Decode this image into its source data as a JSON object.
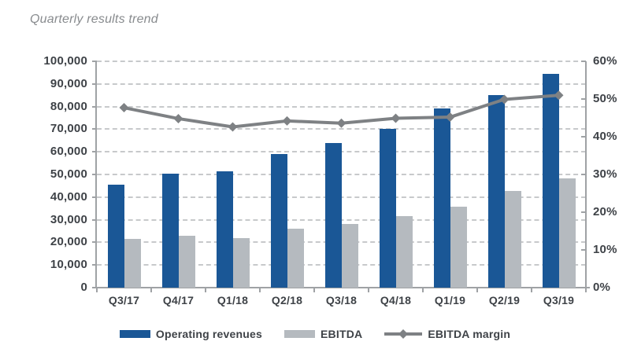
{
  "title": "Quarterly results trend",
  "colors": {
    "revenue_bar": "#1a5796",
    "ebitda_bar": "#b5babf",
    "margin_line": "#7e8184",
    "gridline": "#c7c9cb",
    "axis": "#9fa2a5",
    "axis_text": "#3e4247",
    "title_text": "#888b8e"
  },
  "chart_data": {
    "type": "combo (bar + line)",
    "title": "Quarterly results trend",
    "categories": [
      "Q3/17",
      "Q4/17",
      "Q1/18",
      "Q2/18",
      "Q3/18",
      "Q4/18",
      "Q1/19",
      "Q2/19",
      "Q3/19"
    ],
    "series": [
      {
        "name": "Operating revenues",
        "type": "bar",
        "axis": "left",
        "values": [
          45500,
          50500,
          51500,
          59000,
          64000,
          70000,
          79000,
          85000,
          94500
        ]
      },
      {
        "name": "EBITDA",
        "type": "bar",
        "axis": "left",
        "values": [
          21700,
          22800,
          22000,
          26200,
          28000,
          31500,
          35800,
          42700,
          48300
        ]
      },
      {
        "name": "EBITDA margin",
        "type": "line",
        "axis": "right",
        "unit": "%",
        "values": [
          47.7,
          44.8,
          42.6,
          44.2,
          43.6,
          44.9,
          45.2,
          49.9,
          51.0
        ]
      }
    ],
    "left_axis": {
      "min": 0,
      "max": 100000,
      "tick_step": 10000,
      "tick_labels": [
        "0",
        "10,000",
        "20,000",
        "30,000",
        "40,000",
        "50,000",
        "60,000",
        "70,000",
        "80,000",
        "90,000",
        "100,000"
      ]
    },
    "right_axis": {
      "min": 0,
      "max": 60,
      "tick_step": 10,
      "tick_labels": [
        "0%",
        "10%",
        "20%",
        "30%",
        "40%",
        "50%",
        "60%"
      ]
    },
    "grid": "horizontal dashed",
    "legend_position": "bottom"
  },
  "legend": {
    "items": [
      {
        "label": "Operating revenues",
        "swatch": "blue-bar"
      },
      {
        "label": "EBITDA",
        "swatch": "gray-bar"
      },
      {
        "label": "EBITDA margin",
        "swatch": "gray-line-diamond"
      }
    ]
  }
}
